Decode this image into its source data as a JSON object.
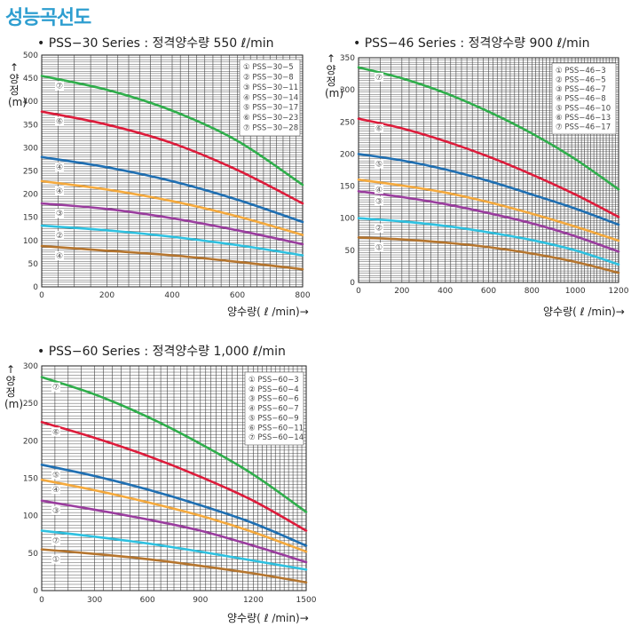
{
  "page": {
    "title": "성능곡선도"
  },
  "chart_data": [
    {
      "type": "line",
      "title": "• PSS−30 Series : 정격양수량 550 ℓ/min",
      "xlabel": "양수량( ℓ /min)→",
      "ylabel": "↑양정(m)",
      "xlim": [
        0,
        800
      ],
      "ylim": [
        0,
        500
      ],
      "x_ticks": [
        0,
        200,
        400,
        600,
        800
      ],
      "y_ticks": [
        0,
        50,
        100,
        150,
        200,
        250,
        300,
        350,
        400,
        450,
        500
      ],
      "grid": true,
      "legend_position": "top-right",
      "series": [
        {
          "name": "① PSS−30−5",
          "marker": "④",
          "color": "#b5752e",
          "x": [
            0,
            200,
            400,
            600,
            800
          ],
          "y": [
            88,
            78,
            68,
            54,
            38
          ]
        },
        {
          "name": "② PSS−30−8",
          "marker": "②",
          "color": "#2ec1e0",
          "x": [
            0,
            200,
            400,
            600,
            800
          ],
          "y": [
            132,
            122,
            108,
            90,
            68
          ]
        },
        {
          "name": "③ PSS−30−11",
          "marker": "③",
          "color": "#9a3d9e",
          "x": [
            0,
            200,
            400,
            600,
            800
          ],
          "y": [
            180,
            168,
            148,
            122,
            92
          ]
        },
        {
          "name": "④ PSS−30−14",
          "marker": "④",
          "color": "#f4a93d",
          "x": [
            0,
            200,
            400,
            600,
            800
          ],
          "y": [
            228,
            210,
            185,
            152,
            112
          ]
        },
        {
          "name": "⑤ PSS−30−17",
          "marker": "④",
          "color": "#1f6fb2",
          "x": [
            0,
            200,
            400,
            600,
            800
          ],
          "y": [
            280,
            258,
            228,
            188,
            140
          ]
        },
        {
          "name": "⑥ PSS−30−23",
          "marker": "⑥",
          "color": "#dd1c3b",
          "x": [
            0,
            200,
            400,
            600,
            800
          ],
          "y": [
            378,
            350,
            310,
            252,
            180
          ]
        },
        {
          "name": "⑦ PSS−30−28",
          "marker": "⑦",
          "color": "#2fae4b",
          "x": [
            0,
            200,
            400,
            600,
            800
          ],
          "y": [
            455,
            425,
            380,
            315,
            220
          ]
        }
      ]
    },
    {
      "type": "line",
      "title": "• PSS−46  Series : 정격양수량 900 ℓ/min",
      "xlabel": "양수량( ℓ /min)→",
      "ylabel": "↑양정(m)",
      "xlim": [
        0,
        1200
      ],
      "ylim": [
        0,
        350
      ],
      "x_ticks": [
        0,
        200,
        400,
        600,
        800,
        1000,
        1200
      ],
      "y_ticks": [
        0,
        50,
        100,
        150,
        200,
        250,
        300,
        350
      ],
      "grid": true,
      "legend_position": "top-right",
      "series": [
        {
          "name": "① PSS−46−3",
          "marker": "①",
          "color": "#b5752e",
          "x": [
            0,
            200,
            400,
            600,
            800,
            1000,
            1200
          ],
          "y": [
            70,
            67,
            62,
            55,
            45,
            32,
            15
          ]
        },
        {
          "name": "② PSS−46−5",
          "marker": "②",
          "color": "#2ec1e0",
          "x": [
            0,
            200,
            400,
            600,
            800,
            1000,
            1200
          ],
          "y": [
            100,
            95,
            88,
            78,
            66,
            50,
            28
          ]
        },
        {
          "name": "③ PSS−46−7",
          "marker": "③",
          "color": "#9a3d9e",
          "x": [
            0,
            200,
            400,
            600,
            800,
            1000,
            1200
          ],
          "y": [
            142,
            133,
            122,
            108,
            92,
            72,
            48
          ]
        },
        {
          "name": "④ PSS−46−8",
          "marker": "④",
          "color": "#f4a93d",
          "x": [
            0,
            200,
            400,
            600,
            800,
            1000,
            1200
          ],
          "y": [
            160,
            151,
            140,
            125,
            107,
            87,
            65
          ]
        },
        {
          "name": "⑤ PSS−46−10",
          "marker": "⑤",
          "color": "#1f6fb2",
          "x": [
            0,
            200,
            400,
            600,
            800,
            1000,
            1200
          ],
          "y": [
            200,
            190,
            176,
            158,
            137,
            115,
            90
          ]
        },
        {
          "name": "⑥ PSS−46−13",
          "marker": "⑥",
          "color": "#dd1c3b",
          "x": [
            0,
            200,
            400,
            600,
            800,
            1000,
            1200
          ],
          "y": [
            255,
            240,
            220,
            196,
            168,
            137,
            102
          ]
        },
        {
          "name": "⑦ PSS−46−17",
          "marker": "⑦",
          "color": "#2fae4b",
          "x": [
            0,
            200,
            400,
            600,
            800,
            1000,
            1200
          ],
          "y": [
            335,
            318,
            295,
            266,
            232,
            192,
            145
          ]
        }
      ]
    },
    {
      "type": "line",
      "title": "• PSS−60  Series : 정격양수량 1,000 ℓ/min",
      "xlabel": "양수량( ℓ /min)→",
      "ylabel": "↑양정(m)",
      "xlim": [
        0,
        1500
      ],
      "ylim": [
        0,
        300
      ],
      "x_ticks": [
        0,
        300,
        600,
        900,
        1200,
        1500
      ],
      "y_ticks": [
        0,
        50,
        100,
        150,
        200,
        250,
        300
      ],
      "grid": true,
      "legend_position": "top-right",
      "series": [
        {
          "name": "① PSS−60−3",
          "marker": "①",
          "color": "#b5752e",
          "x": [
            0,
            300,
            600,
            900,
            1200,
            1500
          ],
          "y": [
            55,
            49,
            42,
            33,
            23,
            11
          ]
        },
        {
          "name": "② PSS−60−4",
          "marker": "⑦",
          "color": "#2ec1e0",
          "x": [
            0,
            300,
            600,
            900,
            1200,
            1500
          ],
          "y": [
            80,
            72,
            63,
            52,
            40,
            28
          ]
        },
        {
          "name": "③ PSS−60−6",
          "marker": "③",
          "color": "#9a3d9e",
          "x": [
            0,
            300,
            600,
            900,
            1200,
            1500
          ],
          "y": [
            120,
            108,
            95,
            80,
            60,
            38
          ]
        },
        {
          "name": "④ PSS−60−7",
          "marker": "④",
          "color": "#f4a93d",
          "x": [
            0,
            300,
            600,
            900,
            1200,
            1500
          ],
          "y": [
            148,
            134,
            118,
            100,
            78,
            52
          ]
        },
        {
          "name": "⑤ PSS−60−9",
          "marker": "⑤",
          "color": "#1f6fb2",
          "x": [
            0,
            300,
            600,
            900,
            1200,
            1500
          ],
          "y": [
            168,
            153,
            135,
            114,
            90,
            60
          ]
        },
        {
          "name": "⑥ PSS−60−11",
          "marker": "⑥",
          "color": "#dd1c3b",
          "x": [
            0,
            300,
            600,
            900,
            1200,
            1500
          ],
          "y": [
            225,
            204,
            180,
            152,
            120,
            80
          ]
        },
        {
          "name": "⑦ PSS−60−14",
          "marker": "⑦",
          "color": "#2fae4b",
          "x": [
            0,
            300,
            600,
            900,
            1200,
            1500
          ],
          "y": [
            285,
            262,
            232,
            196,
            155,
            105
          ]
        }
      ]
    }
  ]
}
